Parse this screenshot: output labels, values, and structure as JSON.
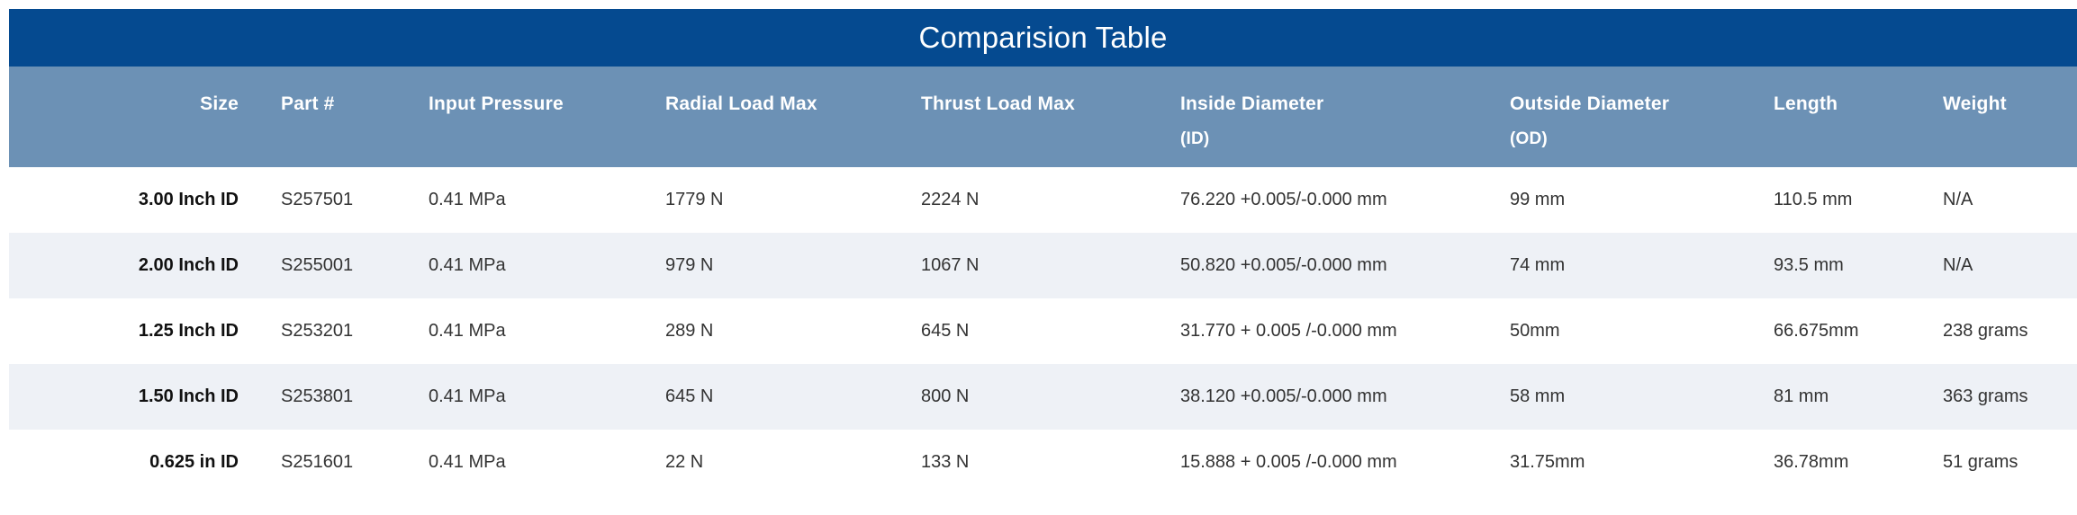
{
  "table": {
    "title": "Comparision Table",
    "columns": [
      {
        "label": "Size",
        "sub": ""
      },
      {
        "label": "Part #",
        "sub": ""
      },
      {
        "label": "Input Pressure",
        "sub": ""
      },
      {
        "label": "Radial Load Max",
        "sub": ""
      },
      {
        "label": "Thrust Load Max",
        "sub": ""
      },
      {
        "label": "Inside Diameter",
        "sub": "(ID)"
      },
      {
        "label": "Outside Diameter",
        "sub": "(OD)"
      },
      {
        "label": "Length",
        "sub": ""
      },
      {
        "label": "Weight",
        "sub": ""
      }
    ],
    "rows": [
      [
        "3.00 Inch ID",
        "S257501",
        "0.41 MPa",
        "1779 N",
        "2224 N",
        "76.220 +0.005/-0.000 mm",
        "99 mm",
        "110.5 mm",
        "N/A"
      ],
      [
        "2.00 Inch ID",
        "S255001",
        "0.41 MPa",
        "979 N",
        "1067 N",
        "50.820 +0.005/-0.000 mm",
        "74 mm",
        "93.5 mm",
        "N/A"
      ],
      [
        "1.25 Inch ID",
        "S253201",
        "0.41 MPa",
        "289 N",
        "645 N",
        "31.770 + 0.005 /-0.000 mm",
        "50mm",
        "66.675mm",
        "238 grams"
      ],
      [
        "1.50 Inch ID",
        "S253801",
        "0.41 MPa",
        "645 N",
        "800 N",
        "38.120 +0.005/-0.000 mm",
        "58 mm",
        "81 mm",
        "363 grams"
      ],
      [
        "0.625 in ID",
        "S251601",
        "0.41 MPa",
        "22 N",
        "133 N",
        "15.888 + 0.005 /-0.000 mm",
        "31.75mm",
        "36.78mm",
        "51 grams"
      ]
    ]
  },
  "colors": {
    "title_bar": "#054A90",
    "header_bg": "#6C91B5",
    "stripe_bg": "#EEF1F6",
    "row_bg": "#FFFFFF",
    "header_text": "#FFFFFF",
    "body_text": "#333333"
  }
}
